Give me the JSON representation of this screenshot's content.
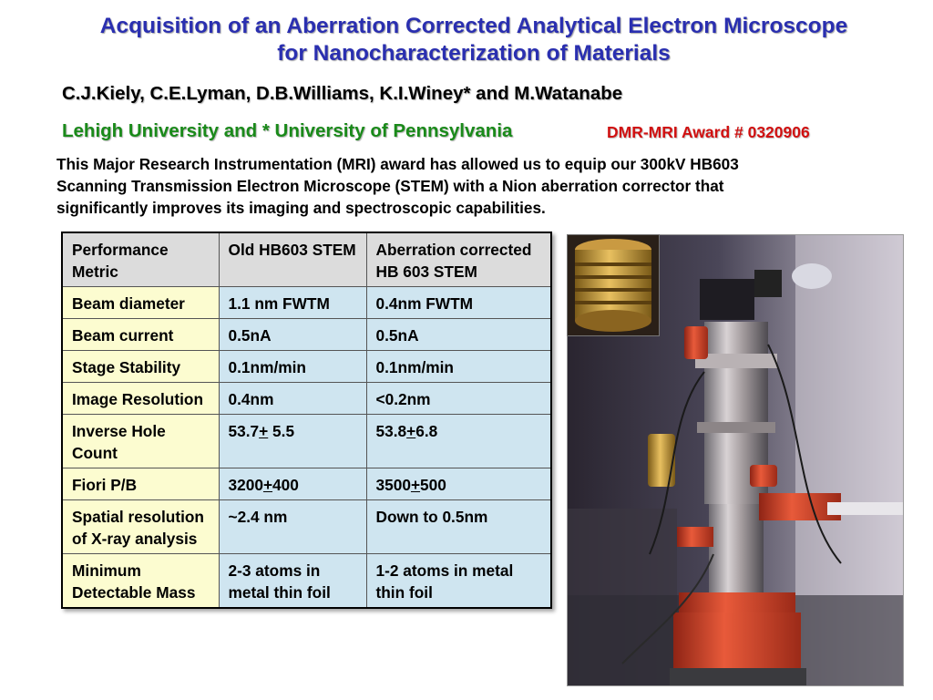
{
  "header": {
    "title_line1": "Acquisition of an Aberration Corrected Analytical Electron Microscope",
    "title_line2": "for Nanocharacterization of Materials",
    "authors": "C.J.Kiely, C.E.Lyman, D.B.Williams, K.I.Winey* and M.Watanabe",
    "affiliation": "Lehigh University and * University of Pennsylvania",
    "award": "DMR-MRI Award # 0320906"
  },
  "description": {
    "line1": "This Major Research Instrumentation (MRI) award has allowed us to equip our 300kV HB603",
    "line2": "Scanning Transmission Electron Microscope (STEM) with a Nion aberration corrector that",
    "line3": "significantly improves its imaging and spectroscopic capabilities."
  },
  "table": {
    "headers": [
      "Performance Metric",
      "Old HB603 STEM",
      "Aberration corrected  HB 603 STEM"
    ],
    "rows": [
      {
        "metric": "Beam diameter",
        "old": "1.1 nm FWTM",
        "new": "0.4nm FWTM"
      },
      {
        "metric": "Beam current",
        "old": "0.5nA",
        "new": "0.5nA"
      },
      {
        "metric": "Stage Stability",
        "old": "0.1nm/min",
        "new": "0.1nm/min"
      },
      {
        "metric": "Image Resolution",
        "old": "0.4nm",
        "new": "<0.2nm"
      },
      {
        "metric": "Inverse Hole Count",
        "old_a": "53.7",
        "old_pm": "+",
        "old_b": " 5.5",
        "new_a": "53.8",
        "new_pm": "+",
        "new_b": "6.8"
      },
      {
        "metric": "Fiori P/B",
        "old_a": "3200",
        "old_pm": "+",
        "old_b": "400",
        "new_a": "3500",
        "new_pm": "+",
        "new_b": "500"
      },
      {
        "metric": "Spatial resolution of X-ray analysis",
        "old": "~2.4 nm",
        "new": "Down to 0.5nm"
      },
      {
        "metric": "Minimum Detectable Mass",
        "old": "2-3 atoms in metal thin foil",
        "new": "1-2 atoms in metal thin foil"
      }
    ]
  },
  "images": {
    "main_photo": "microscope-column-photo",
    "inset_photo": "corrector-coil-photo"
  },
  "colors": {
    "title": "#2a2fb0",
    "affiliation": "#1a8a1a",
    "award": "#d01010",
    "header_cell": "#dcdcdc",
    "metric_cell": "#fcfcd0",
    "value_cell": "#cfe5f0"
  }
}
